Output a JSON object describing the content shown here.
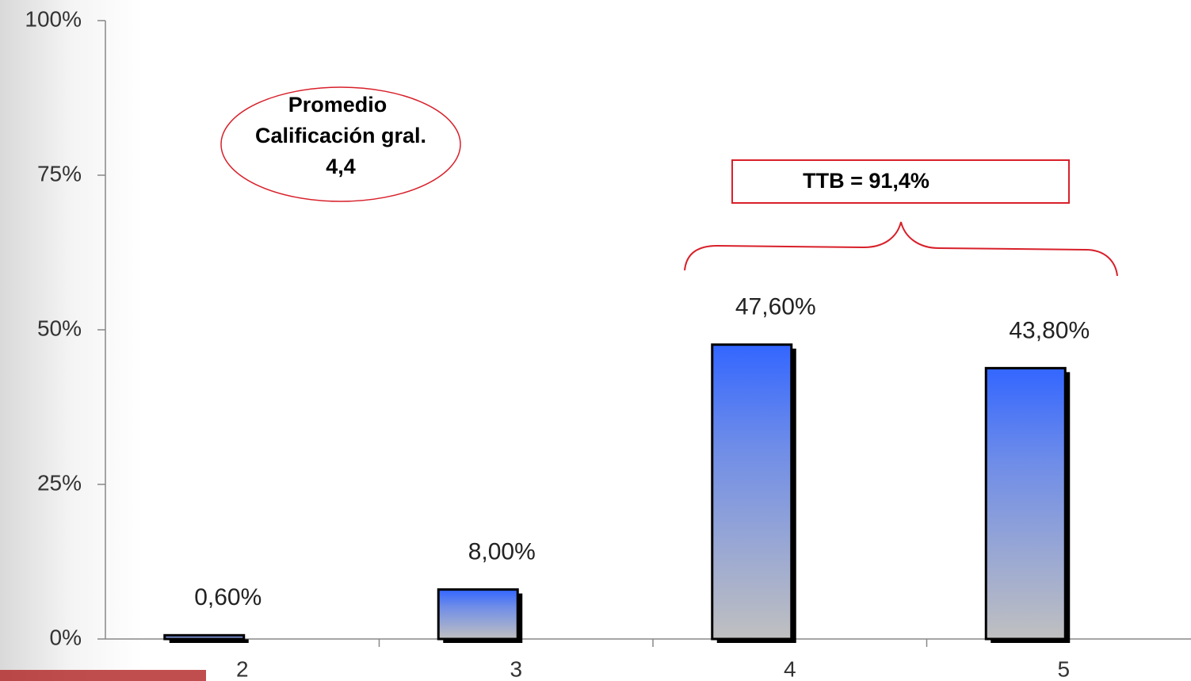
{
  "chart_data": {
    "type": "bar",
    "categories": [
      "2",
      "3",
      "4",
      "5"
    ],
    "values": [
      0.6,
      8,
      47.6,
      43.8
    ],
    "value_labels": [
      "0,60%",
      "8,00%",
      "47,60%",
      "43,80%"
    ],
    "ylim": [
      0,
      100
    ],
    "yticks": [
      {
        "value": 0,
        "label": "0%"
      },
      {
        "value": 25,
        "label": "25%"
      },
      {
        "value": 50,
        "label": "50%"
      },
      {
        "value": 75,
        "label": "75%"
      },
      {
        "value": 100,
        "label": "100%"
      }
    ],
    "color_top": "#3366ff",
    "color_bottom": "#c0c0c0",
    "annotations": {
      "ellipse": [
        "Promedio",
        "Calificación gral.",
        "4,4"
      ],
      "box": "TTB = 91,4%"
    }
  }
}
